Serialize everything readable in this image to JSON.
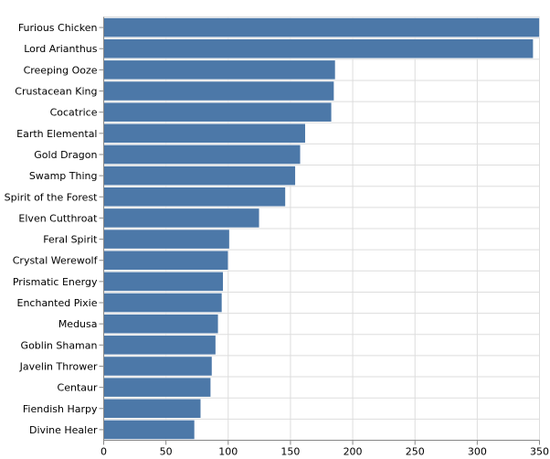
{
  "chart_data": {
    "type": "bar",
    "orientation": "horizontal",
    "categories": [
      "Furious Chicken",
      "Lord Arianthus",
      "Creeping Ooze",
      "Crustacean King",
      "Cocatrice",
      "Earth Elemental",
      "Gold Dragon",
      "Swamp Thing",
      "Spirit of the Forest",
      "Elven Cutthroat",
      "Feral Spirit",
      "Crystal Werewolf",
      "Prismatic Energy",
      "Enchanted Pixie",
      "Medusa",
      "Goblin Shaman",
      "Javelin Thrower",
      "Centaur",
      "Fiendish Harpy",
      "Divine Healer"
    ],
    "values": [
      350,
      345,
      186,
      185,
      183,
      162,
      158,
      154,
      146,
      125,
      101,
      100,
      96,
      95,
      92,
      90,
      87,
      86,
      78,
      73
    ],
    "xlim": [
      0,
      350
    ],
    "xticks": [
      "0",
      "50",
      "100",
      "150",
      "200",
      "250",
      "300",
      "350"
    ],
    "xtick_values": [
      0,
      50,
      100,
      150,
      200,
      250,
      300,
      350
    ],
    "title": "",
    "xlabel": "",
    "ylabel": "",
    "grid": true,
    "bar_color": "#4c78a8"
  }
}
